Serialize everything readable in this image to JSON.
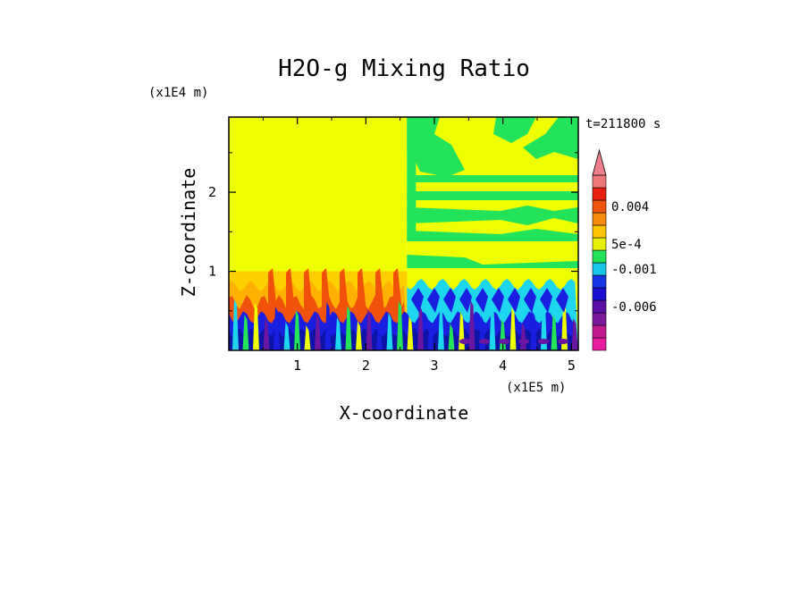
{
  "title": "H2O-g Mixing Ratio",
  "time_label": "t=211800 s",
  "x_multiplier": "(x1E5 m)",
  "z_multiplier": "(x1E4 m)",
  "chart_data": {
    "type": "heatmap",
    "title": "H2O-g Mixing Ratio",
    "xlabel": "X-coordinate",
    "ylabel": "Z-coordinate",
    "x_unit": "(x1E5 m)",
    "y_unit": "(x1E4 m)",
    "xlim": [
      0.0,
      5.1
    ],
    "ylim": [
      0.0,
      2.95
    ],
    "x_ticks": [
      1,
      2,
      3,
      4,
      5
    ],
    "y_ticks": [
      1,
      2
    ],
    "colorbar": {
      "tick_labels": [
        "0.004",
        "5e-4",
        "-0.001",
        "-0.006"
      ],
      "bands": [
        "#e81c9e",
        "#c21a8e",
        "#7a1a9a",
        "#5a0fa8",
        "#1a0fd0",
        "#1636e6",
        "#18c6e8",
        "#22e25a",
        "#e8f000",
        "#ffc400",
        "#f68a0c",
        "#f0540a",
        "#e82010",
        "#ee7878"
      ]
    },
    "colors": {
      "yellow": "#eeff00",
      "green": "#22e35a",
      "cyan": "#1ed6ee",
      "blue": "#1a1ee0",
      "dark_blue": "#0e14a8",
      "purple": "#6a16a0",
      "orange": "#ffb000",
      "light_orange": "#ffd000",
      "red_orange": "#f0520c"
    }
  }
}
